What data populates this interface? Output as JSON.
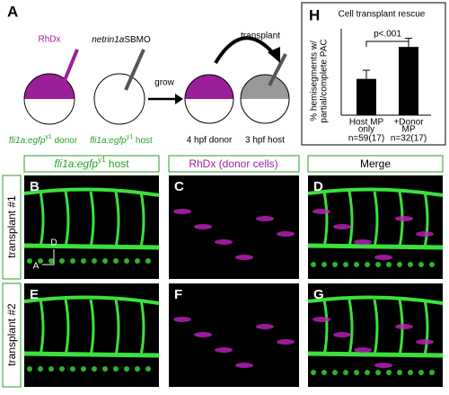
{
  "schematic": {
    "letter": "A",
    "dye": "RhDx",
    "morpholino": [
      "netrin1a",
      "SBMO"
    ],
    "grow": "grow",
    "transplant": "transplant",
    "donor_line": [
      "fli1a:egfp",
      "y1",
      " donor"
    ],
    "host_line": [
      "fli1a:egfp",
      "y1",
      " host"
    ],
    "donor_stage": "4 hpf donor",
    "host_stage": "3 hpf host"
  },
  "chart_data": {
    "type": "bar",
    "letter": "H",
    "title": "Cell transplant rescue",
    "ylabel": [
      "% hemisegments w/",
      "partial/complete PAC"
    ],
    "categories": [
      [
        "Host MP",
        "only"
      ],
      [
        "+Donor",
        "MP"
      ]
    ],
    "n_labels": [
      "n=59(17)",
      "n=32(17)"
    ],
    "values": [
      42,
      79
    ],
    "errors": [
      10,
      10
    ],
    "ylim": [
      0,
      100
    ],
    "significance": "p<.001",
    "color": "#000000"
  },
  "column_headers": [
    [
      "fli1a:egfp",
      "y1",
      " host"
    ],
    [
      "RhDx (donor cells)"
    ],
    [
      "Merge"
    ]
  ],
  "row_labels": [
    "transplant #1",
    "transplant #2"
  ],
  "panels": [
    "B",
    "C",
    "D",
    "E",
    "F",
    "G"
  ],
  "axis_labels": {
    "dorsal": "D",
    "anterior": "A"
  }
}
